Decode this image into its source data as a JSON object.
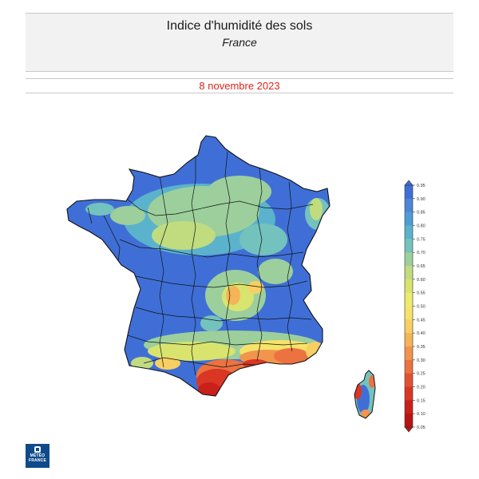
{
  "header": {
    "title": "Indice d'humidité des sols",
    "subtitle": "France"
  },
  "date": "8 novembre 2023",
  "legend": {
    "ticks": [
      "0.95",
      "0.90",
      "0.85",
      "0.80",
      "0.75",
      "0.70",
      "0.65",
      "0.60",
      "0.55",
      "0.50",
      "0.45",
      "0.40",
      "0.35",
      "0.30",
      "0.25",
      "0.20",
      "0.15",
      "0.10",
      "0.05"
    ],
    "colors": [
      "#3f6fd6",
      "#4b86d8",
      "#4d9cd4",
      "#5bb2cc",
      "#74c2bd",
      "#9ccf9c",
      "#c0dc7e",
      "#d9e46e",
      "#ecec6c",
      "#f6e36a",
      "#f7cf62",
      "#f5b458",
      "#f1954c",
      "#ec7240",
      "#e45132",
      "#d93624",
      "#c9201a",
      "#b81412"
    ]
  },
  "logo": {
    "line1": "MÉTÉO",
    "line2": "FRANCE"
  }
}
